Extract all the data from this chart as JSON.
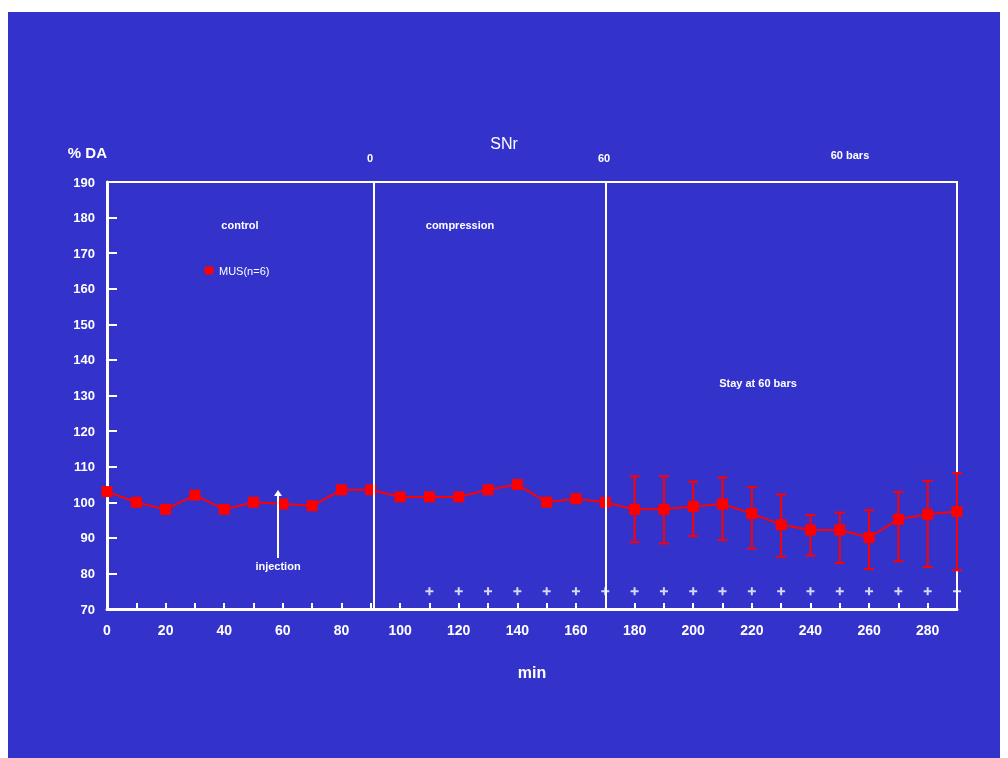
{
  "chart_data": {
    "type": "line",
    "title": "SNr",
    "xlabel": "min",
    "ylabel": "% DA",
    "xlim": [
      0,
      290
    ],
    "ylim": [
      70,
      190
    ],
    "xticks": [
      0,
      {
        "value": 10,
        "label": null
      },
      20,
      {
        "value": 30,
        "label": null
      },
      40,
      {
        "value": 50,
        "label": null
      },
      60,
      {
        "value": 70,
        "label": null
      },
      80,
      {
        "value": 90,
        "label": null
      },
      100,
      {
        "value": 110,
        "label": null
      },
      120,
      {
        "value": 130,
        "label": null
      },
      140,
      {
        "value": 150,
        "label": null
      },
      160,
      {
        "value": 170,
        "label": null
      },
      180,
      {
        "value": 190,
        "label": null
      },
      200,
      {
        "value": 210,
        "label": null
      },
      220,
      {
        "value": 230,
        "label": null
      },
      240,
      {
        "value": 250,
        "label": null
      },
      260,
      {
        "value": 270,
        "label": null
      },
      280,
      {
        "value": 290,
        "label": null
      }
    ],
    "yticks": [
      70,
      80,
      90,
      100,
      110,
      120,
      130,
      140,
      150,
      160,
      170,
      180,
      190
    ],
    "grid": false,
    "legend": "top left",
    "series": [
      {
        "name": "MUS(n=6)",
        "color": "#ff0000",
        "marker": "square",
        "x": [
          0,
          10,
          20,
          30,
          40,
          50,
          60,
          70,
          80,
          90,
          100,
          110,
          120,
          130,
          140,
          150,
          160,
          170,
          180,
          190,
          200,
          210,
          220,
          230,
          240,
          250,
          260,
          270,
          280,
          290
        ],
        "values": [
          103,
          100,
          98,
          102,
          98,
          100,
          99.5,
          99,
          103.5,
          103.5,
          101.5,
          101.5,
          101.5,
          103.5,
          105,
          100,
          101,
          100,
          98,
          98,
          98.8,
          99.5,
          96.8,
          93.7,
          92.2,
          92.2,
          90.1,
          95.2,
          96.6,
          97.4
        ],
        "errors": [
          null,
          null,
          null,
          null,
          null,
          null,
          null,
          null,
          null,
          null,
          null,
          null,
          null,
          null,
          null,
          null,
          null,
          null,
          [
            88.8,
            107.3
          ],
          [
            88.4,
            107.3
          ],
          [
            90.5,
            105.8
          ],
          [
            89.4,
            107
          ],
          [
            87,
            104.3
          ],
          [
            84.7,
            102.2
          ],
          [
            85,
            96.4
          ],
          [
            82.9,
            97.1
          ],
          [
            81.2,
            97.8
          ],
          [
            83.4,
            102.9
          ],
          [
            81.8,
            106
          ],
          [
            80.9,
            108.2
          ]
        ]
      },
      {
        "type": "scatter",
        "color": "#ffffff",
        "marker": "cross",
        "x": [
          110,
          120,
          130,
          140,
          150,
          160,
          170,
          180,
          190,
          200,
          210,
          220,
          230,
          240,
          250,
          260,
          270,
          280,
          290
        ],
        "values": [
          75,
          75,
          75,
          75,
          75,
          75,
          75,
          75,
          75,
          75,
          75,
          75,
          75,
          75,
          75,
          75,
          75,
          75,
          75
        ]
      }
    ],
    "ref_lines": [
      {
        "axis": "x",
        "value": 91,
        "color": "#ffffff"
      },
      {
        "axis": "x",
        "value": 170,
        "color": "#ffffff"
      }
    ],
    "annotations": [
      "0",
      "60",
      "60 bars",
      "control",
      "compression",
      "Stay at 60 bars",
      "injection"
    ]
  }
}
